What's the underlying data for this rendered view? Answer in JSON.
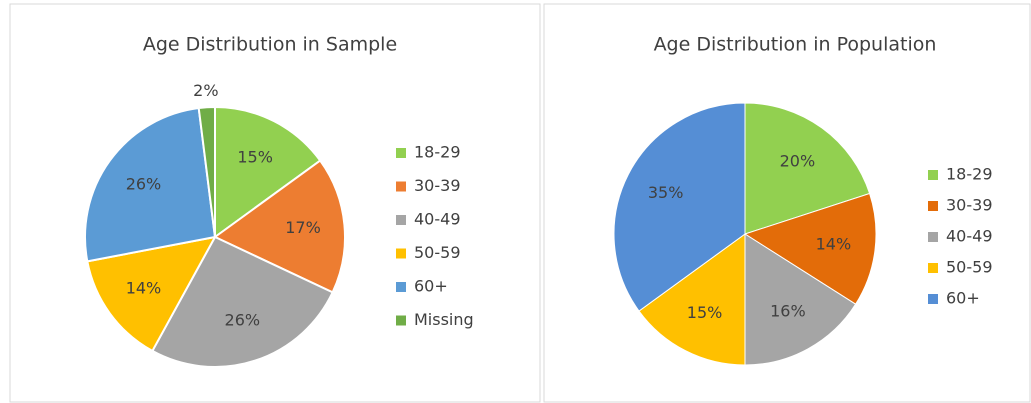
{
  "chart_data": [
    {
      "type": "pie",
      "title": "Age Distribution in Sample",
      "categories": [
        "18-29",
        "30-39",
        "40-49",
        "50-59",
        "60+",
        "Missing"
      ],
      "values": [
        15,
        17,
        26,
        14,
        26,
        2
      ],
      "value_labels": [
        "15%",
        "17%",
        "26%",
        "14%",
        "26%",
        "2%"
      ],
      "colors": [
        "#92d050",
        "#ed7d31",
        "#a5a5a5",
        "#ffc000",
        "#5b9bd5",
        "#70ad47"
      ],
      "legend": "right"
    },
    {
      "type": "pie",
      "title": "Age Distribution in Population",
      "categories": [
        "18-29",
        "30-39",
        "40-49",
        "50-59",
        "60+"
      ],
      "values": [
        20,
        14,
        16,
        15,
        35
      ],
      "value_labels": [
        "20%",
        "14%",
        "16%",
        "15%",
        "35%"
      ],
      "colors": [
        "#92d050",
        "#e36c09",
        "#a5a5a5",
        "#ffc000",
        "#558ed5"
      ],
      "legend": "right"
    }
  ]
}
